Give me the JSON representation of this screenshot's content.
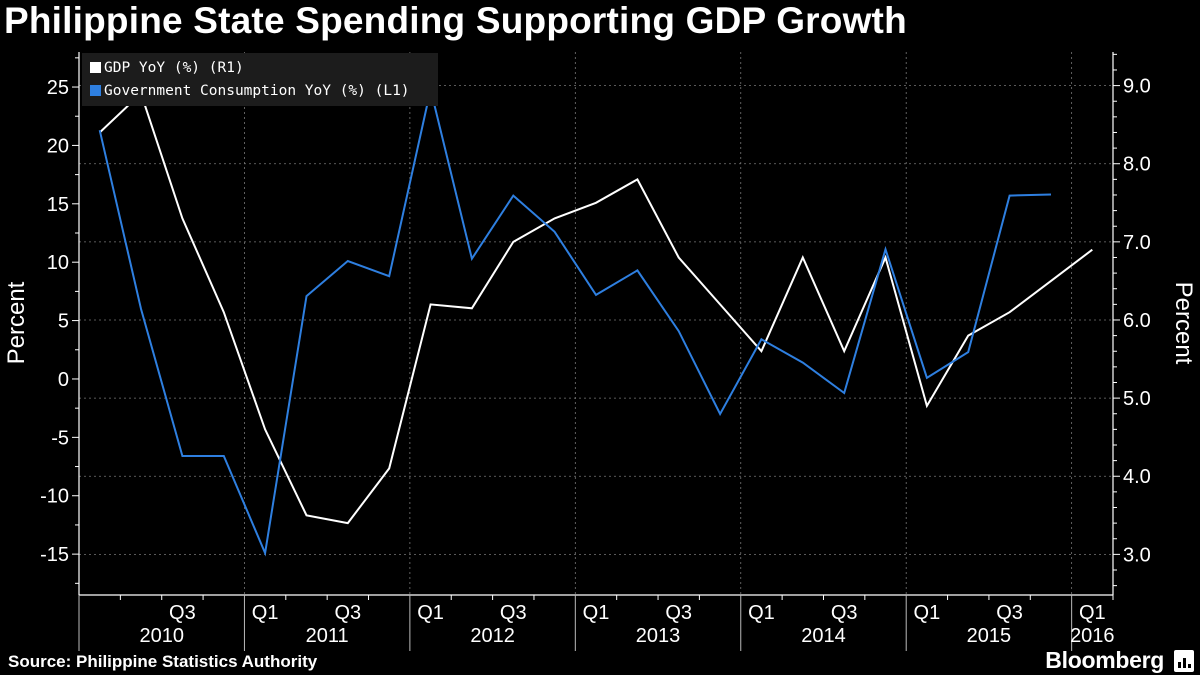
{
  "title": "Philippine State Spending Supporting GDP Growth",
  "source": "Source: Philippine Statistics Authority",
  "brand": "Bloomberg",
  "colors": {
    "background": "#000000",
    "gdp": "#ffffff",
    "gov": "#2e7fe0",
    "grid": "#777777"
  },
  "chart_data": {
    "type": "line",
    "title": "Philippine State Spending Supporting GDP Growth",
    "left_axis": {
      "label": "Percent",
      "range": [
        -18.5,
        28
      ],
      "ticks": [
        25,
        20,
        15,
        10,
        5,
        0,
        -5,
        -10,
        -15
      ]
    },
    "right_axis": {
      "label": "Percent",
      "range": [
        2.48,
        9.43
      ],
      "ticks": [
        "9.0",
        "8.0",
        "7.0",
        "6.0",
        "5.0",
        "4.0",
        "3.0"
      ]
    },
    "x": [
      "2010 Q1",
      "2010 Q2",
      "2010 Q3",
      "2010 Q4",
      "2011 Q1",
      "2011 Q2",
      "2011 Q3",
      "2011 Q4",
      "2012 Q1",
      "2012 Q2",
      "2012 Q3",
      "2012 Q4",
      "2013 Q1",
      "2013 Q2",
      "2013 Q3",
      "2013 Q4",
      "2014 Q1",
      "2014 Q2",
      "2014 Q3",
      "2014 Q4",
      "2015 Q1",
      "2015 Q2",
      "2015 Q3",
      "2015 Q4",
      "2016 Q1"
    ],
    "x_tick_labels": [
      {
        "index": 2,
        "label": "Q3"
      },
      {
        "index": 4,
        "label": "Q1"
      },
      {
        "index": 6,
        "label": "Q3"
      },
      {
        "index": 8,
        "label": "Q1"
      },
      {
        "index": 10,
        "label": "Q3"
      },
      {
        "index": 12,
        "label": "Q1"
      },
      {
        "index": 14,
        "label": "Q3"
      },
      {
        "index": 16,
        "label": "Q1"
      },
      {
        "index": 18,
        "label": "Q3"
      },
      {
        "index": 20,
        "label": "Q1"
      },
      {
        "index": 22,
        "label": "Q3"
      },
      {
        "index": 24,
        "label": "Q1"
      }
    ],
    "years": [
      {
        "label": "2010",
        "start": 0,
        "end": 3
      },
      {
        "label": "2011",
        "start": 4,
        "end": 7
      },
      {
        "label": "2012",
        "start": 8,
        "end": 11
      },
      {
        "label": "2013",
        "start": 12,
        "end": 15
      },
      {
        "label": "2014",
        "start": 16,
        "end": 19
      },
      {
        "label": "2015",
        "start": 20,
        "end": 23
      },
      {
        "label": "2016",
        "start": 24,
        "end": 24
      }
    ],
    "series": [
      {
        "name": "GDP YoY (%) (R1)",
        "axis": "right",
        "color": "#ffffff",
        "values": [
          8.4,
          8.9,
          7.3,
          6.1,
          4.6,
          3.5,
          3.4,
          4.1,
          6.2,
          6.15,
          7.0,
          7.3,
          7.5,
          7.8,
          6.8,
          6.2,
          5.6,
          6.8,
          5.6,
          6.8,
          4.9,
          5.8,
          6.1,
          6.5,
          6.9
        ]
      },
      {
        "name": "Government Consumption YoY (%) (L1)",
        "axis": "left",
        "color": "#2e7fe0",
        "values": [
          21.3,
          6.0,
          -6.6,
          -6.6,
          -14.9,
          7.1,
          10.1,
          8.8,
          24.8,
          10.3,
          15.7,
          12.6,
          7.2,
          9.3,
          4.1,
          -3.0,
          3.4,
          1.4,
          -1.2,
          11.1,
          0.1,
          2.3,
          15.7,
          15.8,
          null
        ]
      }
    ],
    "grid": true,
    "legend_position": "top-left"
  }
}
